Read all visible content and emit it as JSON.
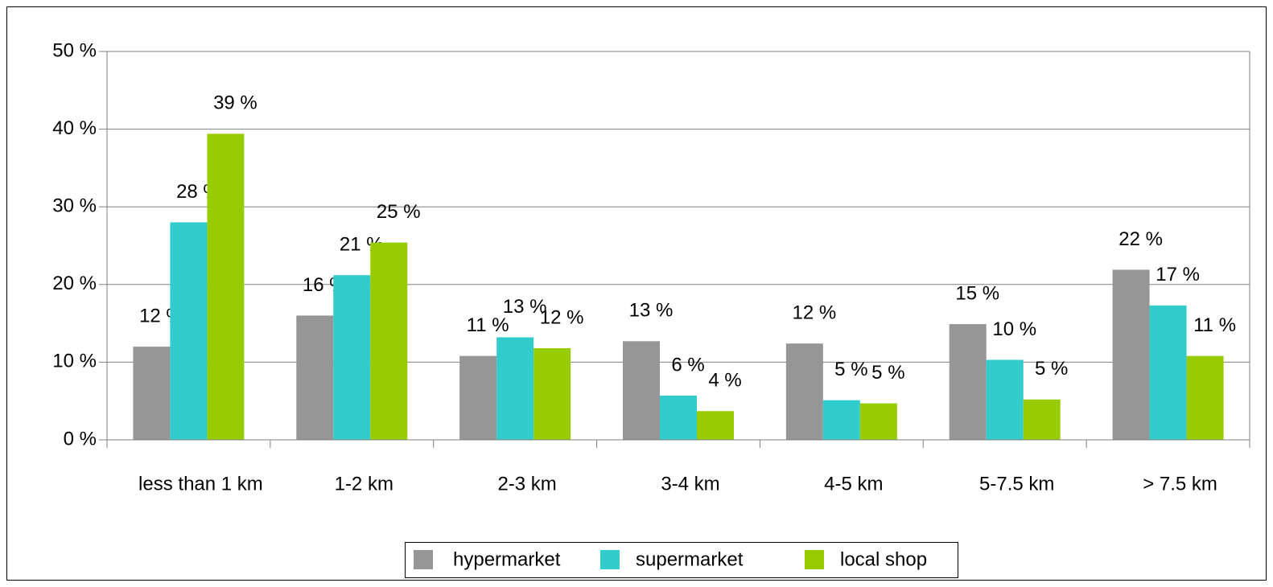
{
  "chart_data": {
    "type": "bar",
    "categories": [
      "less than 1 km",
      "1-2 km",
      "2-3 km",
      "3-4 km",
      "4-5 km",
      "5-7.5 km",
      "> 7.5 km"
    ],
    "series": [
      {
        "name": "hypermarket",
        "color": "#969696",
        "values": [
          12.0,
          16.0,
          10.8,
          12.7,
          12.4,
          14.9,
          21.9
        ],
        "value_labels": [
          "12 %",
          "16 %",
          "11 %",
          "13 %",
          "12 %",
          "15 %",
          "22 %"
        ]
      },
      {
        "name": "supermarket",
        "color": "#33cccc",
        "values": [
          28.0,
          21.2,
          13.2,
          5.7,
          5.1,
          10.3,
          17.3
        ],
        "value_labels": [
          "28 %",
          "21 %",
          "13 %",
          "6 %",
          "5 %",
          "10 %",
          "17 %"
        ]
      },
      {
        "name": "local shop",
        "color": "#99cc00",
        "values": [
          39.4,
          25.4,
          11.8,
          3.7,
          4.7,
          5.2,
          10.8
        ],
        "value_labels": [
          "39 %",
          "25 %",
          "12 %",
          "4 %",
          "5 %",
          "5 %",
          "11 %"
        ]
      }
    ],
    "ylim": [
      0,
      50
    ],
    "yticks": [
      {
        "value": 0,
        "label": "0 %"
      },
      {
        "value": 10,
        "label": "10 %"
      },
      {
        "value": 20,
        "label": "20 %"
      },
      {
        "value": 30,
        "label": "30 %"
      },
      {
        "value": 40,
        "label": "40 %"
      },
      {
        "value": 50,
        "label": "50 %"
      }
    ],
    "grid": true,
    "legend": "bottom"
  }
}
